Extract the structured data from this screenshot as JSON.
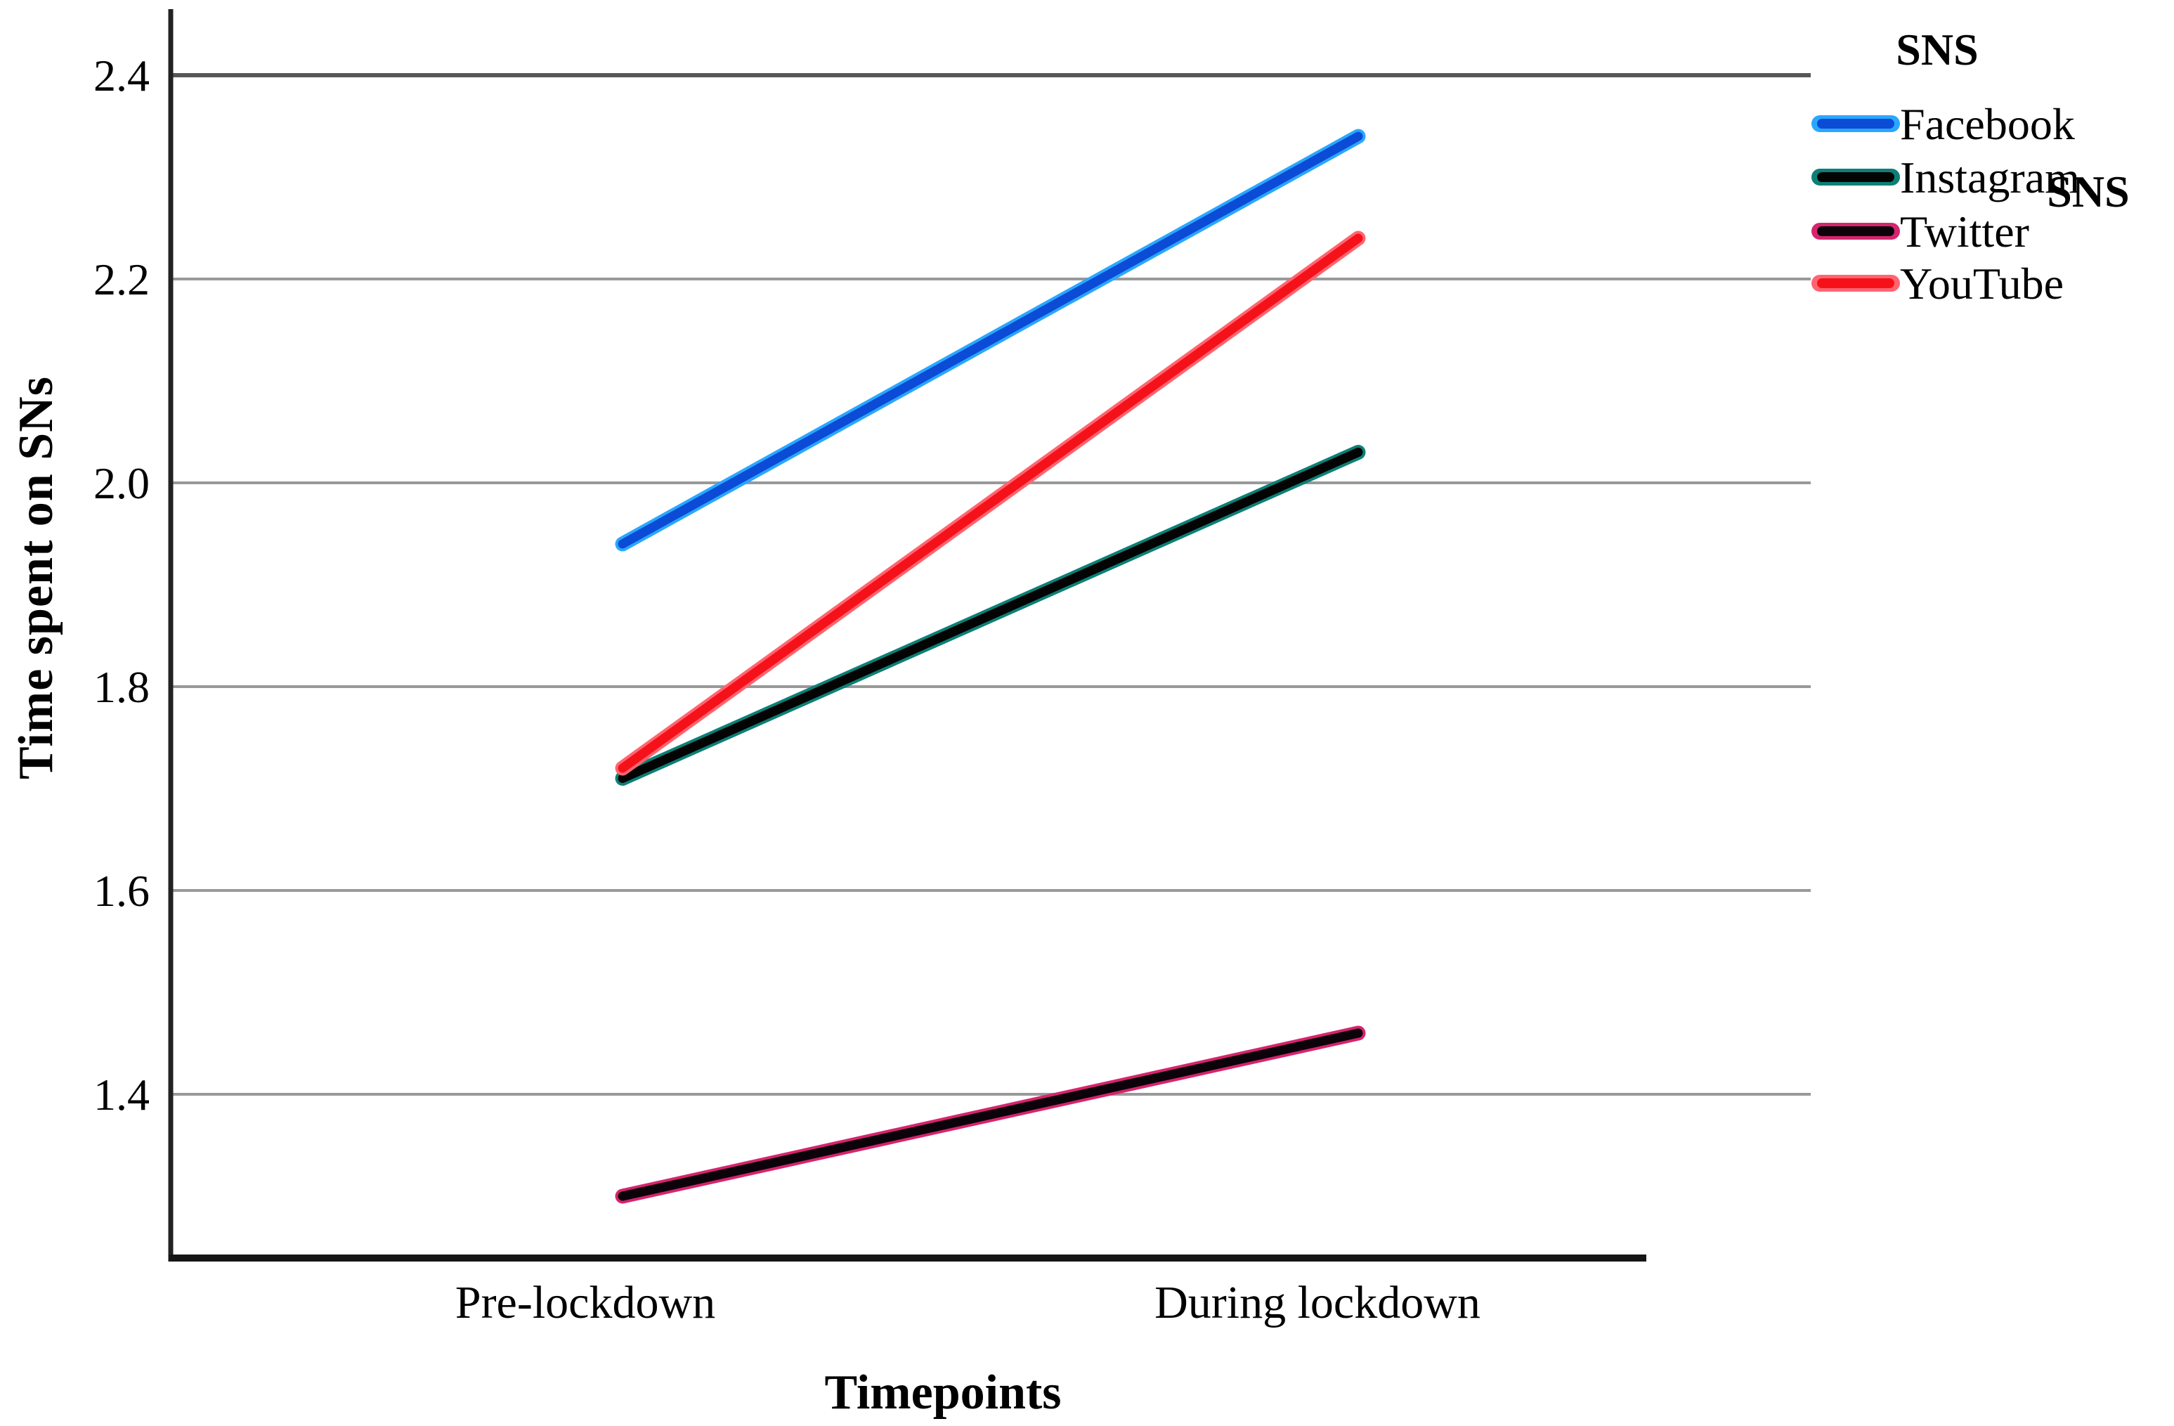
{
  "figure": {
    "background": "#ffffff",
    "text_color": "#000000",
    "axis_color": "#222222",
    "grid_color": "#999999",
    "grid_color_top": "#575757"
  },
  "chart_data": {
    "type": "line",
    "title": "",
    "xlabel": "Timepoints",
    "ylabel": "Time spent on SNs",
    "x_categories": [
      "Pre-lockdown",
      "During lockdown"
    ],
    "yticks": [
      "2.4",
      "2.2",
      "2.0",
      "1.8",
      "1.6",
      "1.4"
    ],
    "ylim": [
      1.24,
      2.465
    ],
    "grid": "horizontal-only",
    "legend": {
      "title": "SNS",
      "position": "top-right",
      "stray_label": "SNS"
    },
    "series": [
      {
        "name": "Facebook",
        "values": [
          1.94,
          2.34
        ],
        "color": "#0b4bd5",
        "edge_color": "#2aa7ff"
      },
      {
        "name": "Instagram",
        "values": [
          1.71,
          2.03
        ],
        "color": "#040404",
        "edge_color": "#0c8076"
      },
      {
        "name": "Twitter",
        "values": [
          1.3,
          1.46
        ],
        "color": "#0b0309",
        "edge_color": "#d6246e"
      },
      {
        "name": "YouTube",
        "values": [
          1.72,
          2.24
        ],
        "color": "#f51119",
        "edge_color": "#ff6570"
      }
    ]
  }
}
